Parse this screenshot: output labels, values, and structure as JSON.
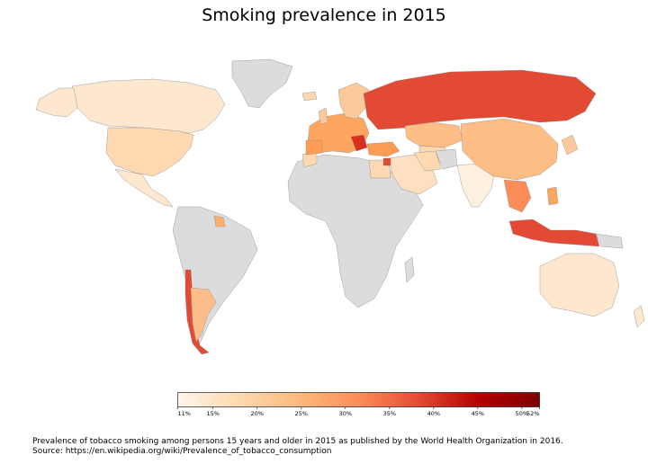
{
  "title": "Smoking prevalence in 2015",
  "no_data_color": "#dcdcdc",
  "colorscale": {
    "min": 11,
    "max": 52,
    "stops": [
      "#fff5eb",
      "#fee6ce",
      "#fdd0a2",
      "#fdae6b",
      "#fd8d3c",
      "#f16913",
      "#d94801",
      "#a63603",
      "#7f2704"
    ],
    "gradient": [
      "#fff5eb",
      "#fdd9b0",
      "#fdb97d",
      "#fc8d59",
      "#e34a33",
      "#b30000",
      "#7f0000"
    ],
    "ticks": [
      {
        "value": 11,
        "label": "11%"
      },
      {
        "value": 15,
        "label": "15%"
      },
      {
        "value": 20,
        "label": "20%"
      },
      {
        "value": 25,
        "label": "25%"
      },
      {
        "value": 30,
        "label": "30%"
      },
      {
        "value": 35,
        "label": "35%"
      },
      {
        "value": 40,
        "label": "40%"
      },
      {
        "value": 45,
        "label": "45%"
      },
      {
        "value": 50,
        "label": "50%"
      },
      {
        "value": 52,
        "label": "52%"
      }
    ]
  },
  "caption": {
    "line1": "Prevalence of tobacco smoking among persons 15 years and older in 2015 as published by the World Health Organization in 2016.",
    "line2": "Source: https://en.wikipedia.org/wiki/Prevalence_of_tobacco_consumption"
  }
}
